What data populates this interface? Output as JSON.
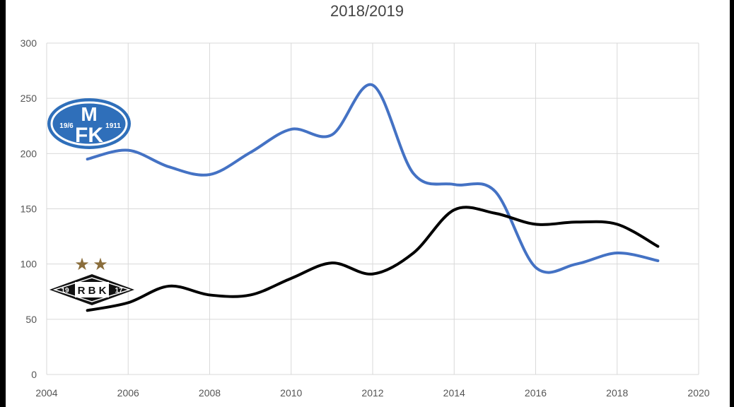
{
  "chart_data": {
    "type": "line",
    "title": "2018/2019",
    "xlabel": "",
    "ylabel": "",
    "xlim": [
      2004,
      2020
    ],
    "ylim": [
      0,
      300
    ],
    "x_ticks": [
      "2004",
      "2006",
      "2008",
      "2010",
      "2012",
      "2014",
      "2016",
      "2018",
      "2020"
    ],
    "y_ticks": [
      "0",
      "50",
      "100",
      "150",
      "200",
      "250",
      "300"
    ],
    "grid": true,
    "legend": "logos",
    "series": [
      {
        "id": "molde",
        "color": "#4472c4",
        "x": [
          2005,
          2006,
          2007,
          2008,
          2009,
          2010,
          2011,
          2012,
          2013,
          2014,
          2015,
          2016,
          2017,
          2018,
          2019
        ],
        "values": [
          195,
          203,
          188,
          181,
          201,
          222,
          217,
          262,
          182,
          172,
          166,
          97,
          100,
          110,
          103
        ]
      },
      {
        "id": "rosenborg",
        "color": "#000000",
        "x": [
          2005,
          2006,
          2007,
          2008,
          2009,
          2010,
          2011,
          2012,
          2013,
          2014,
          2015,
          2016,
          2017,
          2018,
          2019
        ],
        "values": [
          58,
          65,
          80,
          72,
          72,
          87,
          101,
          91,
          110,
          149,
          146,
          136,
          138,
          136,
          116
        ]
      }
    ]
  },
  "logos": {
    "molde": {
      "text_top": "M",
      "text_main": "FK",
      "year_left": "19/6",
      "year_right": "1911",
      "color": "#2f6fba"
    },
    "rosenborg": {
      "text_main": "R B K",
      "year_left": "19",
      "year_right": "17",
      "star_color": "#8a6d3b"
    }
  }
}
